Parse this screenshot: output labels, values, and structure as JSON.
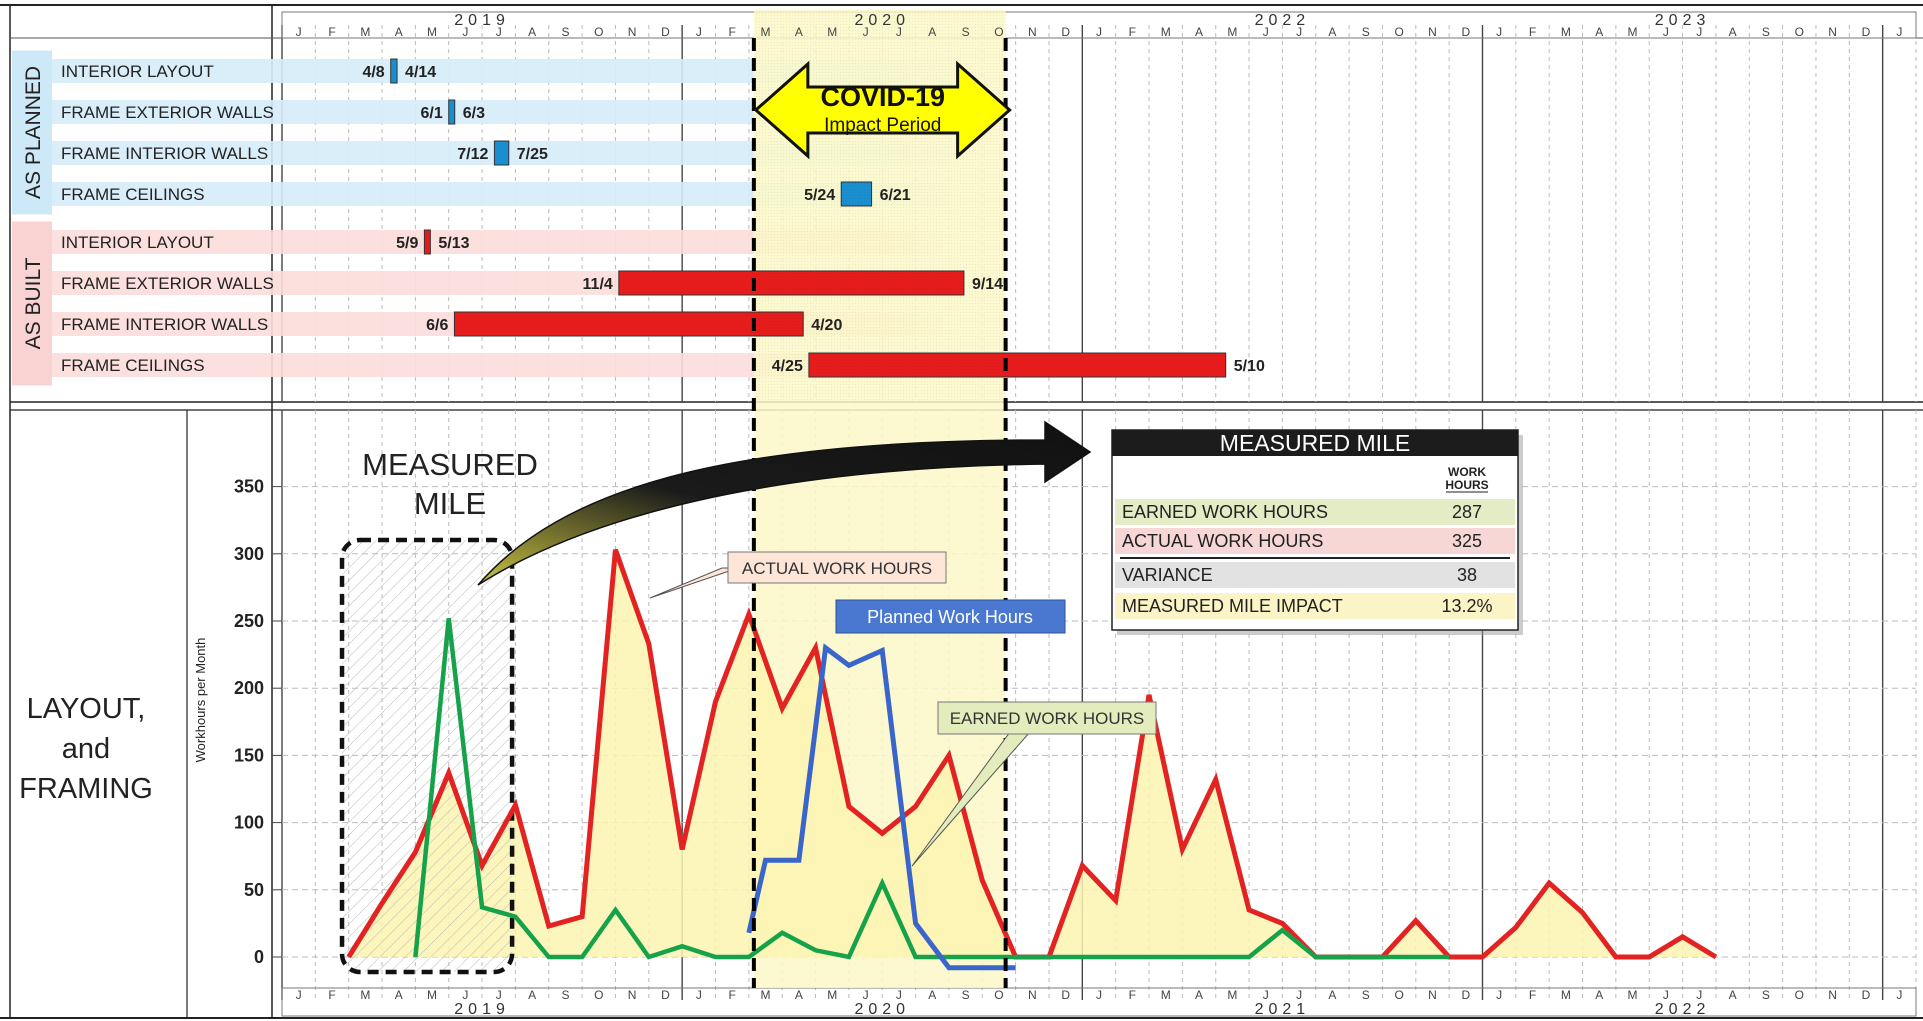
{
  "chart_data": [
    {
      "type": "gantt",
      "groups": [
        {
          "label": "AS PLANNED",
          "tasks": [
            {
              "name": "INTERIOR LAYOUT",
              "start": "4/8",
              "end": "4/14",
              "start_m": 15.26,
              "end_m": 15.45
            },
            {
              "name": "FRAME EXTERIOR WALLS",
              "start": "6/1",
              "end": "6/3",
              "start_m": 17.0,
              "end_m": 17.07
            },
            {
              "name": "FRAME INTERIOR WALLS",
              "start": "7/12",
              "end": "7/25",
              "start_m": 18.37,
              "end_m": 18.8
            },
            {
              "name": "FRAME CEILINGS",
              "start": "5/24",
              "end": "6/21",
              "start_m": 28.77,
              "end_m": 29.68
            }
          ]
        },
        {
          "label": "AS BUILT",
          "tasks": [
            {
              "name": "INTERIOR LAYOUT",
              "start": "5/9",
              "end": "5/13",
              "start_m": 16.27,
              "end_m": 16.4
            },
            {
              "name": "FRAME EXTERIOR WALLS",
              "start": "11/4",
              "end": "9/14",
              "start_m": 22.1,
              "end_m": 32.45
            },
            {
              "name": "FRAME INTERIOR WALLS",
              "start": "6/6",
              "end": "4/20",
              "start_m": 17.17,
              "end_m": 27.63
            },
            {
              "name": "FRAME CEILINGS",
              "start": "4/25",
              "end": "5/10",
              "start_m": 27.8,
              "end_m": 40.3
            }
          ]
        }
      ]
    },
    {
      "type": "line",
      "side_label": [
        "LAYOUT,",
        "and",
        "FRAMING"
      ],
      "ylabel": "Workhours per Month",
      "ylim": [
        0,
        350
      ],
      "yticks": [
        0,
        50,
        100,
        150,
        200,
        250,
        300,
        350
      ],
      "x_unit": "month index (Jan 2018 = 0)",
      "series": [
        {
          "name": "ACTUAL WORK HOURS",
          "color": "#e32222",
          "fill": "#fbf4b0",
          "points": [
            [
              14,
              0
            ],
            [
              15,
              40
            ],
            [
              16,
              78
            ],
            [
              17,
              137
            ],
            [
              18,
              68
            ],
            [
              19,
              113
            ],
            [
              20,
              23
            ],
            [
              21,
              30
            ],
            [
              22,
              303
            ],
            [
              23,
              233
            ],
            [
              24,
              80
            ],
            [
              25,
              190
            ],
            [
              26,
              255
            ],
            [
              27,
              185
            ],
            [
              28,
              230
            ],
            [
              29,
              112
            ],
            [
              30,
              92
            ],
            [
              31,
              112
            ],
            [
              32,
              150
            ],
            [
              33,
              57
            ],
            [
              34,
              0
            ],
            [
              35,
              0
            ],
            [
              36,
              68
            ],
            [
              37,
              42
            ],
            [
              38,
              195
            ],
            [
              39,
              80
            ],
            [
              40,
              132
            ],
            [
              41,
              35
            ],
            [
              42,
              25
            ],
            [
              43,
              0
            ],
            [
              44,
              0
            ],
            [
              45,
              0
            ],
            [
              46,
              27
            ],
            [
              47,
              0
            ],
            [
              48,
              0
            ],
            [
              49,
              22
            ],
            [
              50,
              55
            ],
            [
              51,
              33
            ],
            [
              52,
              0
            ],
            [
              53,
              0
            ],
            [
              54,
              15
            ],
            [
              55,
              0
            ]
          ]
        },
        {
          "name": "EARNED WORK HOURS",
          "color": "#16a24a",
          "points": [
            [
              16,
              0
            ],
            [
              17,
              252
            ],
            [
              18,
              37
            ],
            [
              19,
              30
            ],
            [
              20,
              0
            ],
            [
              21,
              0
            ],
            [
              22,
              35
            ],
            [
              23,
              0
            ],
            [
              24,
              8
            ],
            [
              25,
              0
            ],
            [
              26,
              0
            ],
            [
              27,
              18
            ],
            [
              28,
              5
            ],
            [
              29,
              0
            ],
            [
              30,
              55
            ],
            [
              31,
              0
            ],
            [
              32,
              0
            ],
            [
              33,
              0
            ],
            [
              34,
              0
            ],
            [
              35,
              0
            ],
            [
              36,
              0
            ],
            [
              37,
              0
            ],
            [
              38,
              0
            ],
            [
              39,
              0
            ],
            [
              40,
              0
            ],
            [
              41,
              0
            ],
            [
              42,
              20
            ],
            [
              43,
              0
            ],
            [
              44,
              0
            ],
            [
              45,
              0
            ],
            [
              46,
              0
            ],
            [
              47,
              0
            ]
          ]
        },
        {
          "name": "Planned Work Hours",
          "color": "#3a66cc",
          "points": [
            [
              26,
              18
            ],
            [
              26.5,
              72
            ],
            [
              27.5,
              72
            ],
            [
              28.3,
              230
            ],
            [
              29,
              217
            ],
            [
              30,
              228
            ],
            [
              31,
              25
            ],
            [
              32,
              -8
            ],
            [
              34,
              -8
            ]
          ]
        }
      ],
      "annotations": {
        "measured_mile_label": [
          "MEASURED",
          "MILE"
        ],
        "actual_label": "ACTUAL WORK HOURS",
        "earned_label": "EARNED WORK HOURS",
        "planned_label": "Planned Work Hours",
        "covid_title": "COVID-19",
        "covid_sub": "Impact Period"
      },
      "table": {
        "title": "MEASURED MILE",
        "col_header": [
          "WORK",
          "HOURS"
        ],
        "rows": [
          {
            "label": "EARNED WORK HOURS",
            "value": "287",
            "bg": "#e3ecc5"
          },
          {
            "label": "ACTUAL WORK HOURS",
            "value": "325",
            "bg": "#f7d6d6"
          },
          {
            "label": "VARIANCE",
            "value": "38",
            "bg": "#e2e2e2"
          },
          {
            "label": "MEASURED MILE IMPACT",
            "value": "13.2%",
            "bg": "#fbf4c6"
          }
        ]
      }
    }
  ],
  "timeline": {
    "month_letters": [
      "J",
      "F",
      "M",
      "A",
      "M",
      "J",
      "J",
      "A",
      "S",
      "O",
      "N",
      "D"
    ],
    "top_years": [
      "2019",
      "2020",
      "2022",
      "2023"
    ],
    "bottom_years": [
      "2019",
      "2020",
      "2021",
      "2022"
    ]
  }
}
